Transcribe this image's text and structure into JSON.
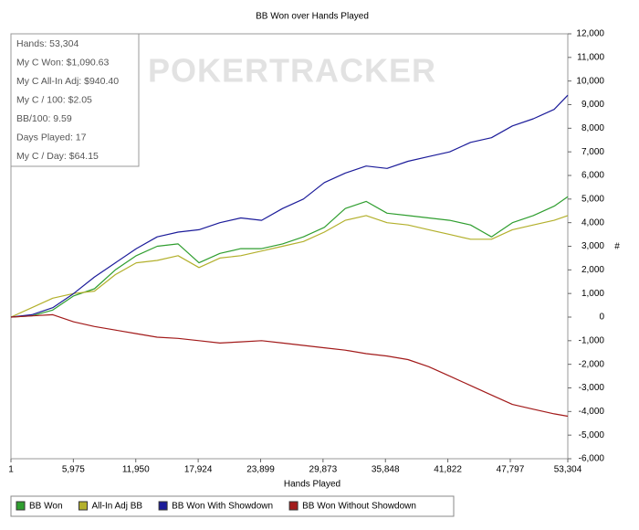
{
  "chart_data": {
    "type": "line",
    "title": "BB Won over Hands Played",
    "x_label": "Hands Played",
    "y_label": "#",
    "watermark": "POKERTRACKER",
    "annotations": [
      "Hands: 53,304",
      "My C Won: $1,090.63",
      "My C All-In Adj: $940.40",
      "My C / 100: $2.05",
      "BB/100: 9.59",
      "Days Played: 17",
      "My C / Day: $64.15"
    ],
    "x": [
      1,
      2000,
      4000,
      6000,
      8000,
      10000,
      12000,
      14000,
      16000,
      18000,
      20000,
      22000,
      24000,
      26000,
      28000,
      30000,
      32000,
      34000,
      36000,
      38000,
      40000,
      42000,
      44000,
      46000,
      48000,
      50000,
      52000,
      53304
    ],
    "series": [
      {
        "name": "BB Won",
        "color": "#2f9e2f",
        "values": [
          0,
          50,
          300,
          900,
          1200,
          2000,
          2600,
          3000,
          3100,
          2300,
          2700,
          2900,
          2900,
          3100,
          3400,
          3800,
          4600,
          4900,
          4400,
          4300,
          4200,
          4100,
          3900,
          3400,
          4000,
          4300,
          4700,
          5100
        ]
      },
      {
        "name": "All-In Adj BB",
        "color": "#b3b02c",
        "values": [
          0,
          400,
          800,
          1000,
          1100,
          1800,
          2300,
          2400,
          2600,
          2100,
          2500,
          2600,
          2800,
          3000,
          3200,
          3600,
          4100,
          4300,
          4000,
          3900,
          3700,
          3500,
          3300,
          3300,
          3700,
          3900,
          4100,
          4300
        ]
      },
      {
        "name": "BB Won With Showdown",
        "color": "#1c1c9a",
        "values": [
          0,
          100,
          400,
          1000,
          1700,
          2300,
          2900,
          3400,
          3600,
          3700,
          4000,
          4200,
          4100,
          4600,
          5000,
          5700,
          6100,
          6400,
          6300,
          6600,
          6800,
          7000,
          7400,
          7600,
          8100,
          8400,
          8800,
          9400
        ]
      },
      {
        "name": "BB Won Without Showdown",
        "color": "#a21a1a",
        "values": [
          0,
          50,
          100,
          -200,
          -400,
          -550,
          -700,
          -850,
          -900,
          -1000,
          -1100,
          -1050,
          -1000,
          -1100,
          -1200,
          -1300,
          -1400,
          -1550,
          -1650,
          -1800,
          -2100,
          -2500,
          -2900,
          -3300,
          -3700,
          -3900,
          -4100,
          -4200
        ]
      }
    ],
    "xlim": [
      1,
      53304
    ],
    "xticks": [
      1,
      {
        "value": 5975,
        "label": "5,975"
      },
      {
        "value": 11950,
        "label": "11,950"
      },
      {
        "value": 17924,
        "label": "17,924"
      },
      {
        "value": 23899,
        "label": "23,899"
      },
      {
        "value": 29873,
        "label": "29,873"
      },
      {
        "value": 35848,
        "label": "35,848"
      },
      {
        "value": 41822,
        "label": "41,822"
      },
      {
        "value": 47797,
        "label": "47,797"
      },
      {
        "value": 53304,
        "label": "53,304"
      }
    ],
    "ylim": [
      -6000,
      12000
    ],
    "yticks": [
      {
        "value": -6000,
        "label": "-6,000"
      },
      {
        "value": -5000,
        "label": "-5,000"
      },
      {
        "value": -4000,
        "label": "-4,000"
      },
      {
        "value": -3000,
        "label": "-3,000"
      },
      {
        "value": -2000,
        "label": "-2,000"
      },
      {
        "value": -1000,
        "label": "-1,000"
      },
      0,
      {
        "value": 1000,
        "label": "1,000"
      },
      {
        "value": 2000,
        "label": "2,000"
      },
      {
        "value": 3000,
        "label": "3,000"
      },
      {
        "value": 4000,
        "label": "4,000"
      },
      {
        "value": 5000,
        "label": "5,000"
      },
      {
        "value": 6000,
        "label": "6,000"
      },
      {
        "value": 7000,
        "label": "7,000"
      },
      {
        "value": 8000,
        "label": "8,000"
      },
      {
        "value": 9000,
        "label": "9,000"
      },
      {
        "value": 10000,
        "label": "10,000"
      },
      {
        "value": 11000,
        "label": "11,000"
      },
      {
        "value": 12000,
        "label": "12,000"
      }
    ],
    "grid": false,
    "legend": "bottom"
  }
}
